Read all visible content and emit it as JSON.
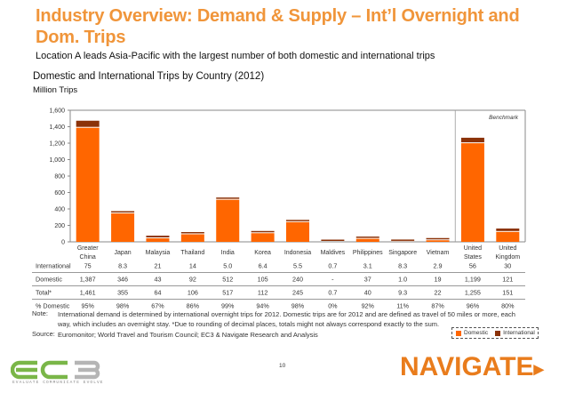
{
  "header": {
    "title": "Industry Overview: Demand & Supply – Int’l Overnight and Dom. Trips",
    "subtitle": "Location A leads Asia-Pacific with the largest number of both domestic and international trips"
  },
  "colors": {
    "title": "#f0953a",
    "domestic": "#ff6600",
    "international": "#8b3208",
    "ec3_green": "#7ab648",
    "ec3_gray": "#b5b5b5",
    "navigate": "#e97c1c"
  },
  "chart_data": {
    "type": "bar",
    "stacked": true,
    "title": "Domestic and International Trips by Country (2012)",
    "ylabel": "Million Trips",
    "xlabel": "",
    "ylim": [
      0,
      1600
    ],
    "yticks": [
      "0",
      "200",
      "400",
      "600",
      "800",
      "1,000",
      "1,200",
      "1,400",
      "1,600"
    ],
    "ytick_values": [
      0,
      200,
      400,
      600,
      800,
      1000,
      1200,
      1400,
      1600
    ],
    "grid": false,
    "categories": [
      "Greater China",
      "Japan",
      "Malaysia",
      "Thailand",
      "India",
      "Korea",
      "Indonesia",
      "Maldives",
      "Philippines",
      "Singapore",
      "Vietnam",
      "United States",
      "United Kingdom"
    ],
    "category_lines": [
      [
        "Greater",
        "China"
      ],
      [
        "Japan"
      ],
      [
        "Malaysia"
      ],
      [
        "Thailand"
      ],
      [
        "India"
      ],
      [
        "Korea"
      ],
      [
        "Indonesia"
      ],
      [
        "Maldives"
      ],
      [
        "Philippines"
      ],
      [
        "Singapore"
      ],
      [
        "Vietnam"
      ],
      [
        "United",
        "States"
      ],
      [
        "United",
        "Kingdom"
      ]
    ],
    "series": [
      {
        "name": "Domestic",
        "values": [
          1387,
          346,
          43,
          92,
          512,
          105,
          240,
          0,
          37,
          1.0,
          19,
          1199,
          121
        ]
      },
      {
        "name": "International",
        "values": [
          75,
          8.3,
          21,
          14,
          5.0,
          6.4,
          5.5,
          0.7,
          3.1,
          8.3,
          2.9,
          56,
          30
        ]
      }
    ],
    "annotation": "Benchmark",
    "benchmark_categories": [
      "United States",
      "United Kingdom"
    ],
    "legend": [
      "Domestic",
      "International"
    ],
    "legend_position": "bottom-right"
  },
  "table": {
    "rows": [
      {
        "label": "International",
        "values": [
          "75",
          "8.3",
          "21",
          "14",
          "5.0",
          "6.4",
          "5.5",
          "0.7",
          "3.1",
          "8.3",
          "2.9",
          "56",
          "30"
        ]
      },
      {
        "label": "Domestic",
        "values": [
          "1,387",
          "346",
          "43",
          "92",
          "512",
          "105",
          "240",
          "-",
          "37",
          "1.0",
          "19",
          "1,199",
          "121"
        ]
      },
      {
        "label": "Total*",
        "values": [
          "1,461",
          "355",
          "64",
          "106",
          "517",
          "112",
          "245",
          "0.7",
          "40",
          "9.3",
          "22",
          "1,255",
          "151"
        ]
      },
      {
        "label": "% Domestic",
        "values": [
          "95%",
          "98%",
          "67%",
          "86%",
          "99%",
          "94%",
          "98%",
          "0%",
          "92%",
          "11%",
          "87%",
          "96%",
          "80%"
        ]
      }
    ]
  },
  "notes": {
    "note_label": "Note:",
    "note_text": "International demand is determined by international overnight trips for 2012. Domestic trips are for 2012 and are defined as travel of 50 miles or more, each way, which includes an overnight stay. *Due to rounding of decimal places, totals might not always correspond exactly to the sum.",
    "source_label": "Source:",
    "source_text": "Euromonitor; World Travel and Tourism Council; EC3 & Navigate Research and Analysis"
  },
  "legend": {
    "domestic": "Domestic",
    "international": "International"
  },
  "footer": {
    "page_number": "10",
    "ec3_logo": "ec3",
    "ec3_tagline": "EVALUATE COMMUNICATE EVOLVE",
    "navigate_logo": "NAVIGATE"
  }
}
